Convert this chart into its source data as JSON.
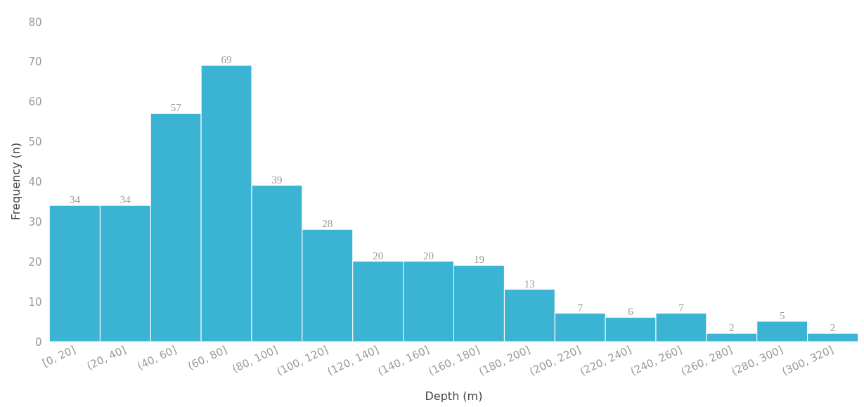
{
  "chart_data": {
    "type": "bar",
    "xlabel": "Depth (m)",
    "ylabel": "Frequency (n)",
    "categories": [
      "[0, 20]",
      "(20, 40]",
      "(40, 60]",
      "(60, 80]",
      "(80, 100]",
      "(100, 120]",
      "(120, 140]",
      "(140, 160]",
      "(160, 180]",
      "(180, 200]",
      "(200, 220]",
      "(220, 240]",
      "(240, 260]",
      "(260, 280]",
      "(280, 300]",
      "(300, 320]"
    ],
    "values": [
      34,
      34,
      57,
      69,
      39,
      28,
      20,
      20,
      19,
      13,
      7,
      6,
      7,
      2,
      5,
      2
    ],
    "color": "#3bb4d3",
    "ylim": [
      0,
      80
    ],
    "yticks": [
      0,
      10,
      20,
      30,
      40,
      50,
      60,
      70,
      80
    ],
    "grid": false,
    "data_labels": true
  }
}
